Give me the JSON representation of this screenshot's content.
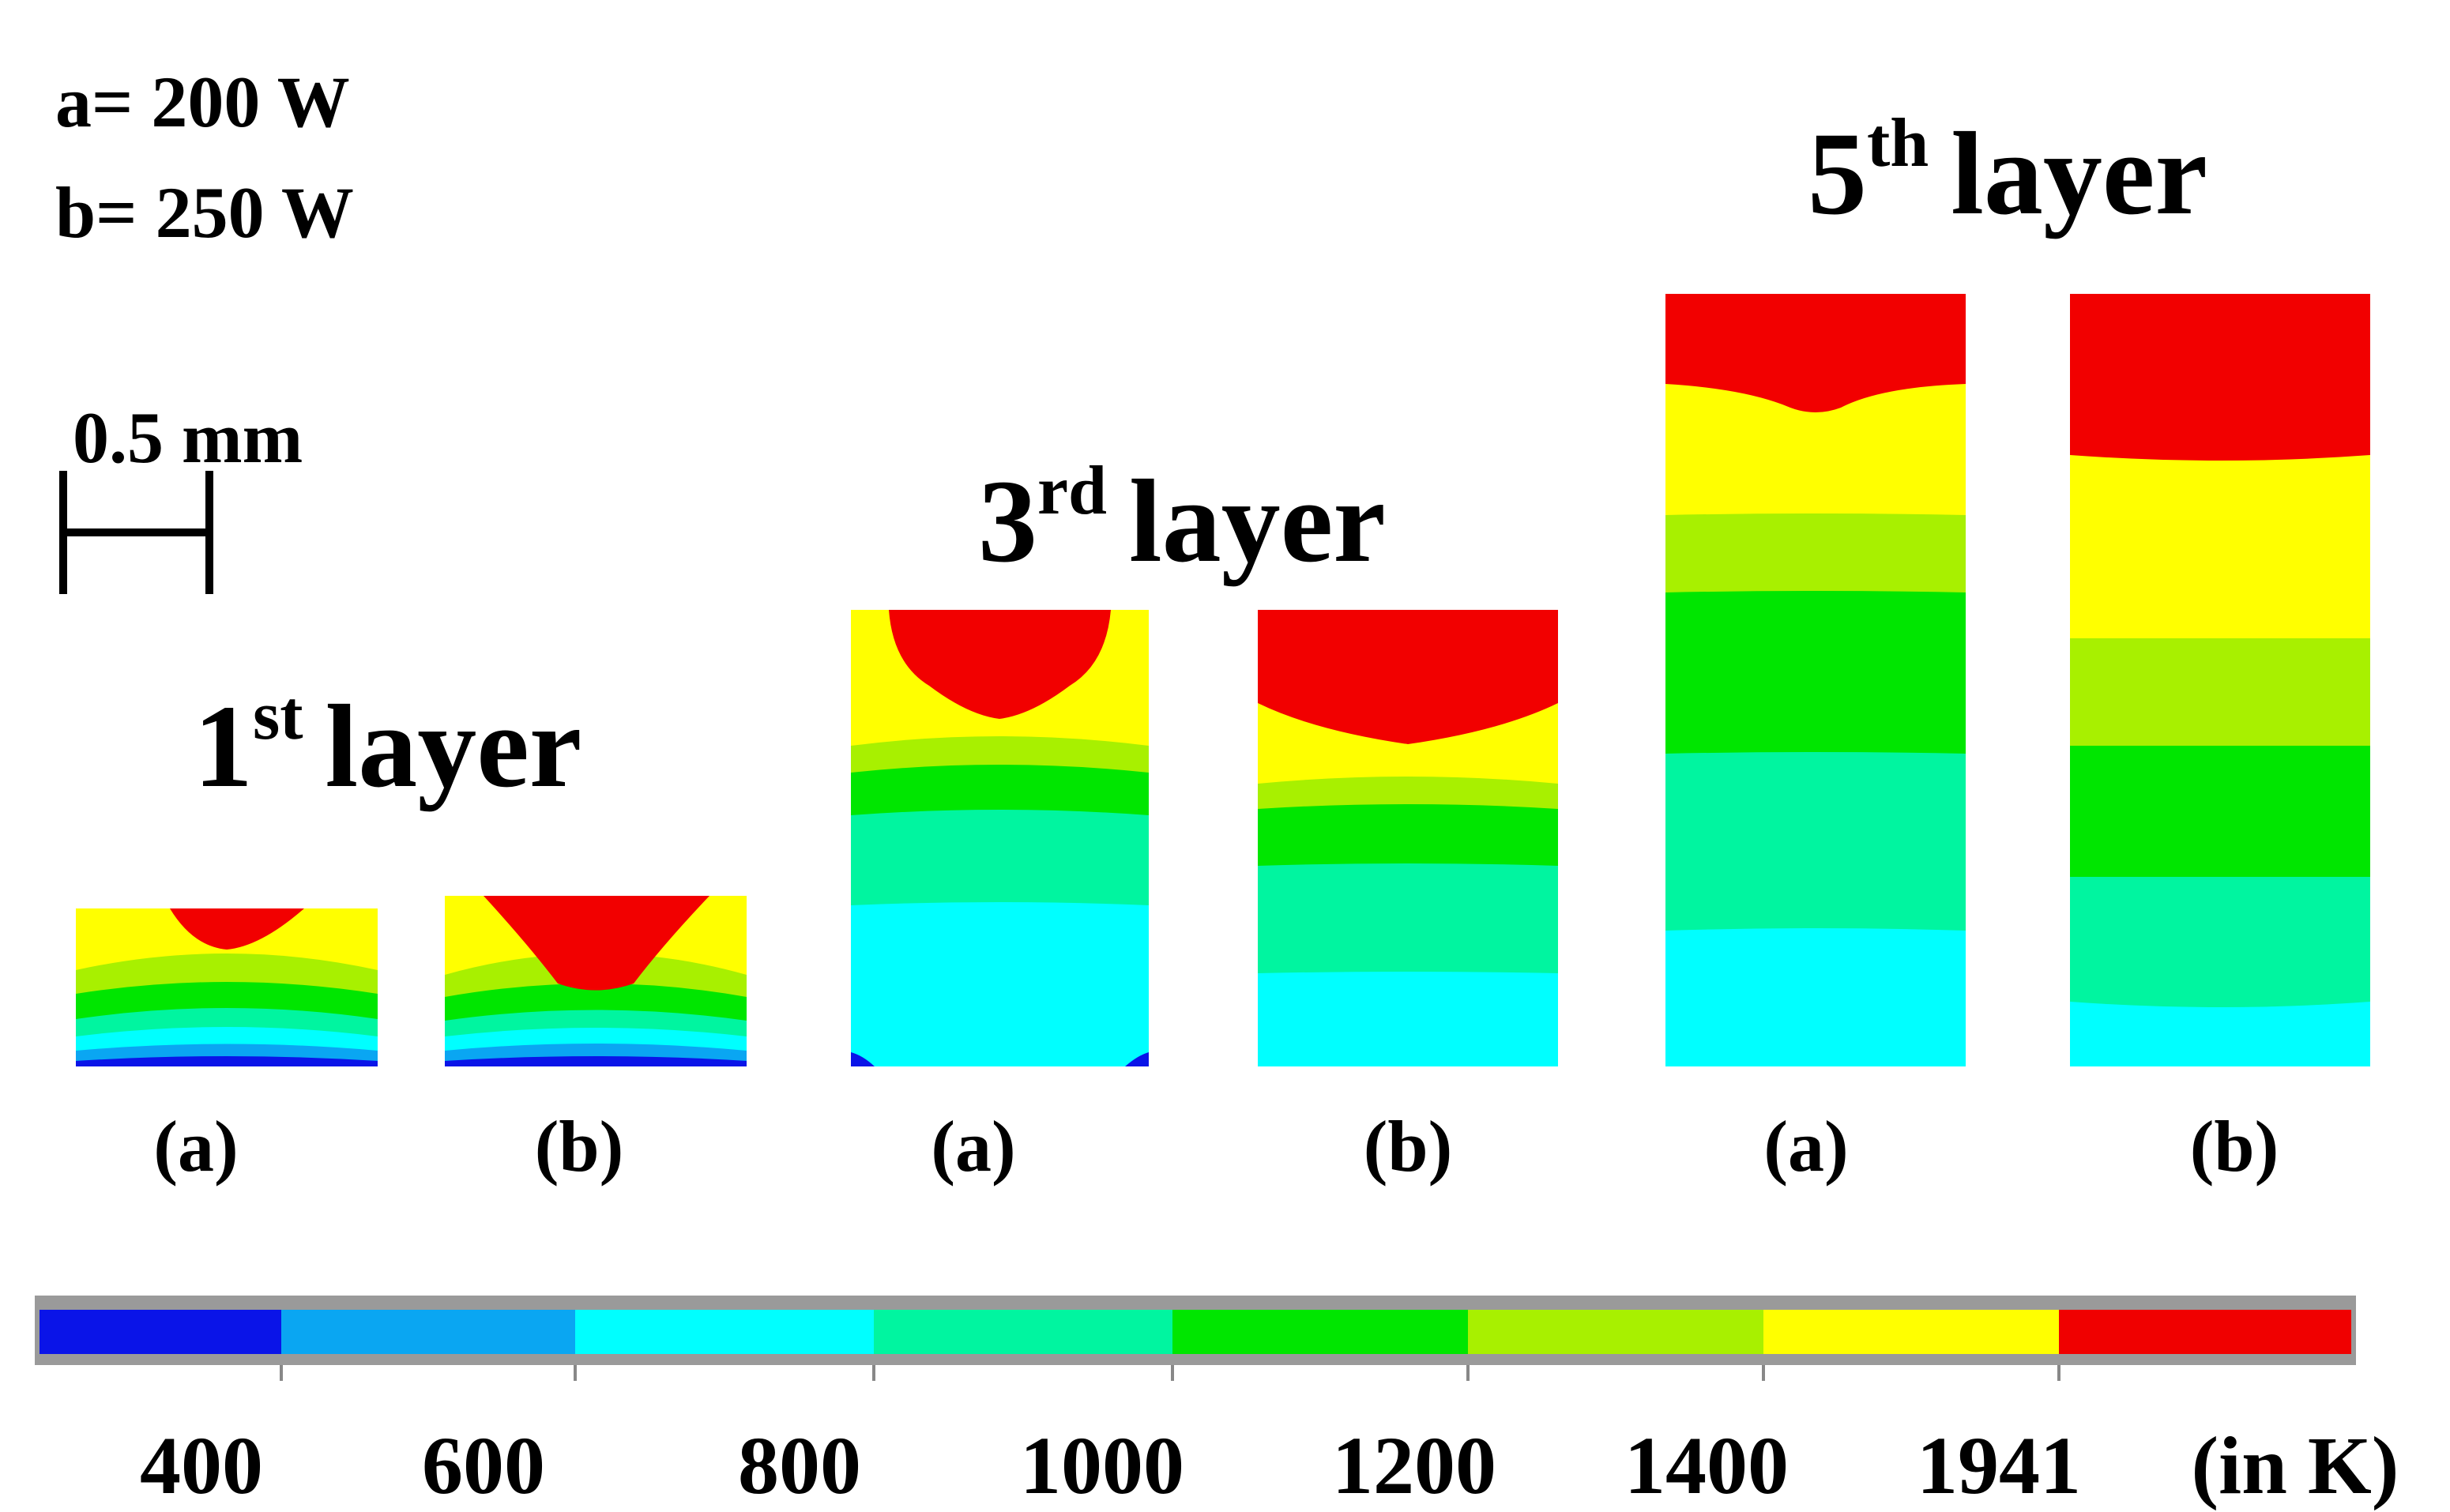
{
  "legend_params": {
    "line1": "a= 200 W",
    "line2": "b= 250 W"
  },
  "scale_bar": {
    "label": "0.5 mm"
  },
  "layers": [
    {
      "number": "1",
      "suffix": "st",
      "word": "layer"
    },
    {
      "number": "3",
      "suffix": "rd",
      "word": "layer"
    },
    {
      "number": "5",
      "suffix": "th",
      "word": "layer"
    }
  ],
  "panel_labels": {
    "a": "(a)",
    "b": "(b)"
  },
  "colorbar": {
    "colors": [
      "#0a14e8",
      "#0aa6f2",
      "#00ffff",
      "#00f5a0",
      "#00e600",
      "#a8f000",
      "#ffff00",
      "#f00000"
    ],
    "ticks": [
      "400",
      "600",
      "800",
      "1000",
      "1200",
      "1400",
      "1941"
    ],
    "unit": "(in K)"
  },
  "palette": {
    "red": "#f20000",
    "yellow": "#ffff00",
    "yellow_green": "#a8f000",
    "green": "#00e600",
    "sea_green": "#00f5a0",
    "cyan": "#00ffff",
    "light_blue": "#0aa6f2",
    "blue": "#0a14e8"
  }
}
